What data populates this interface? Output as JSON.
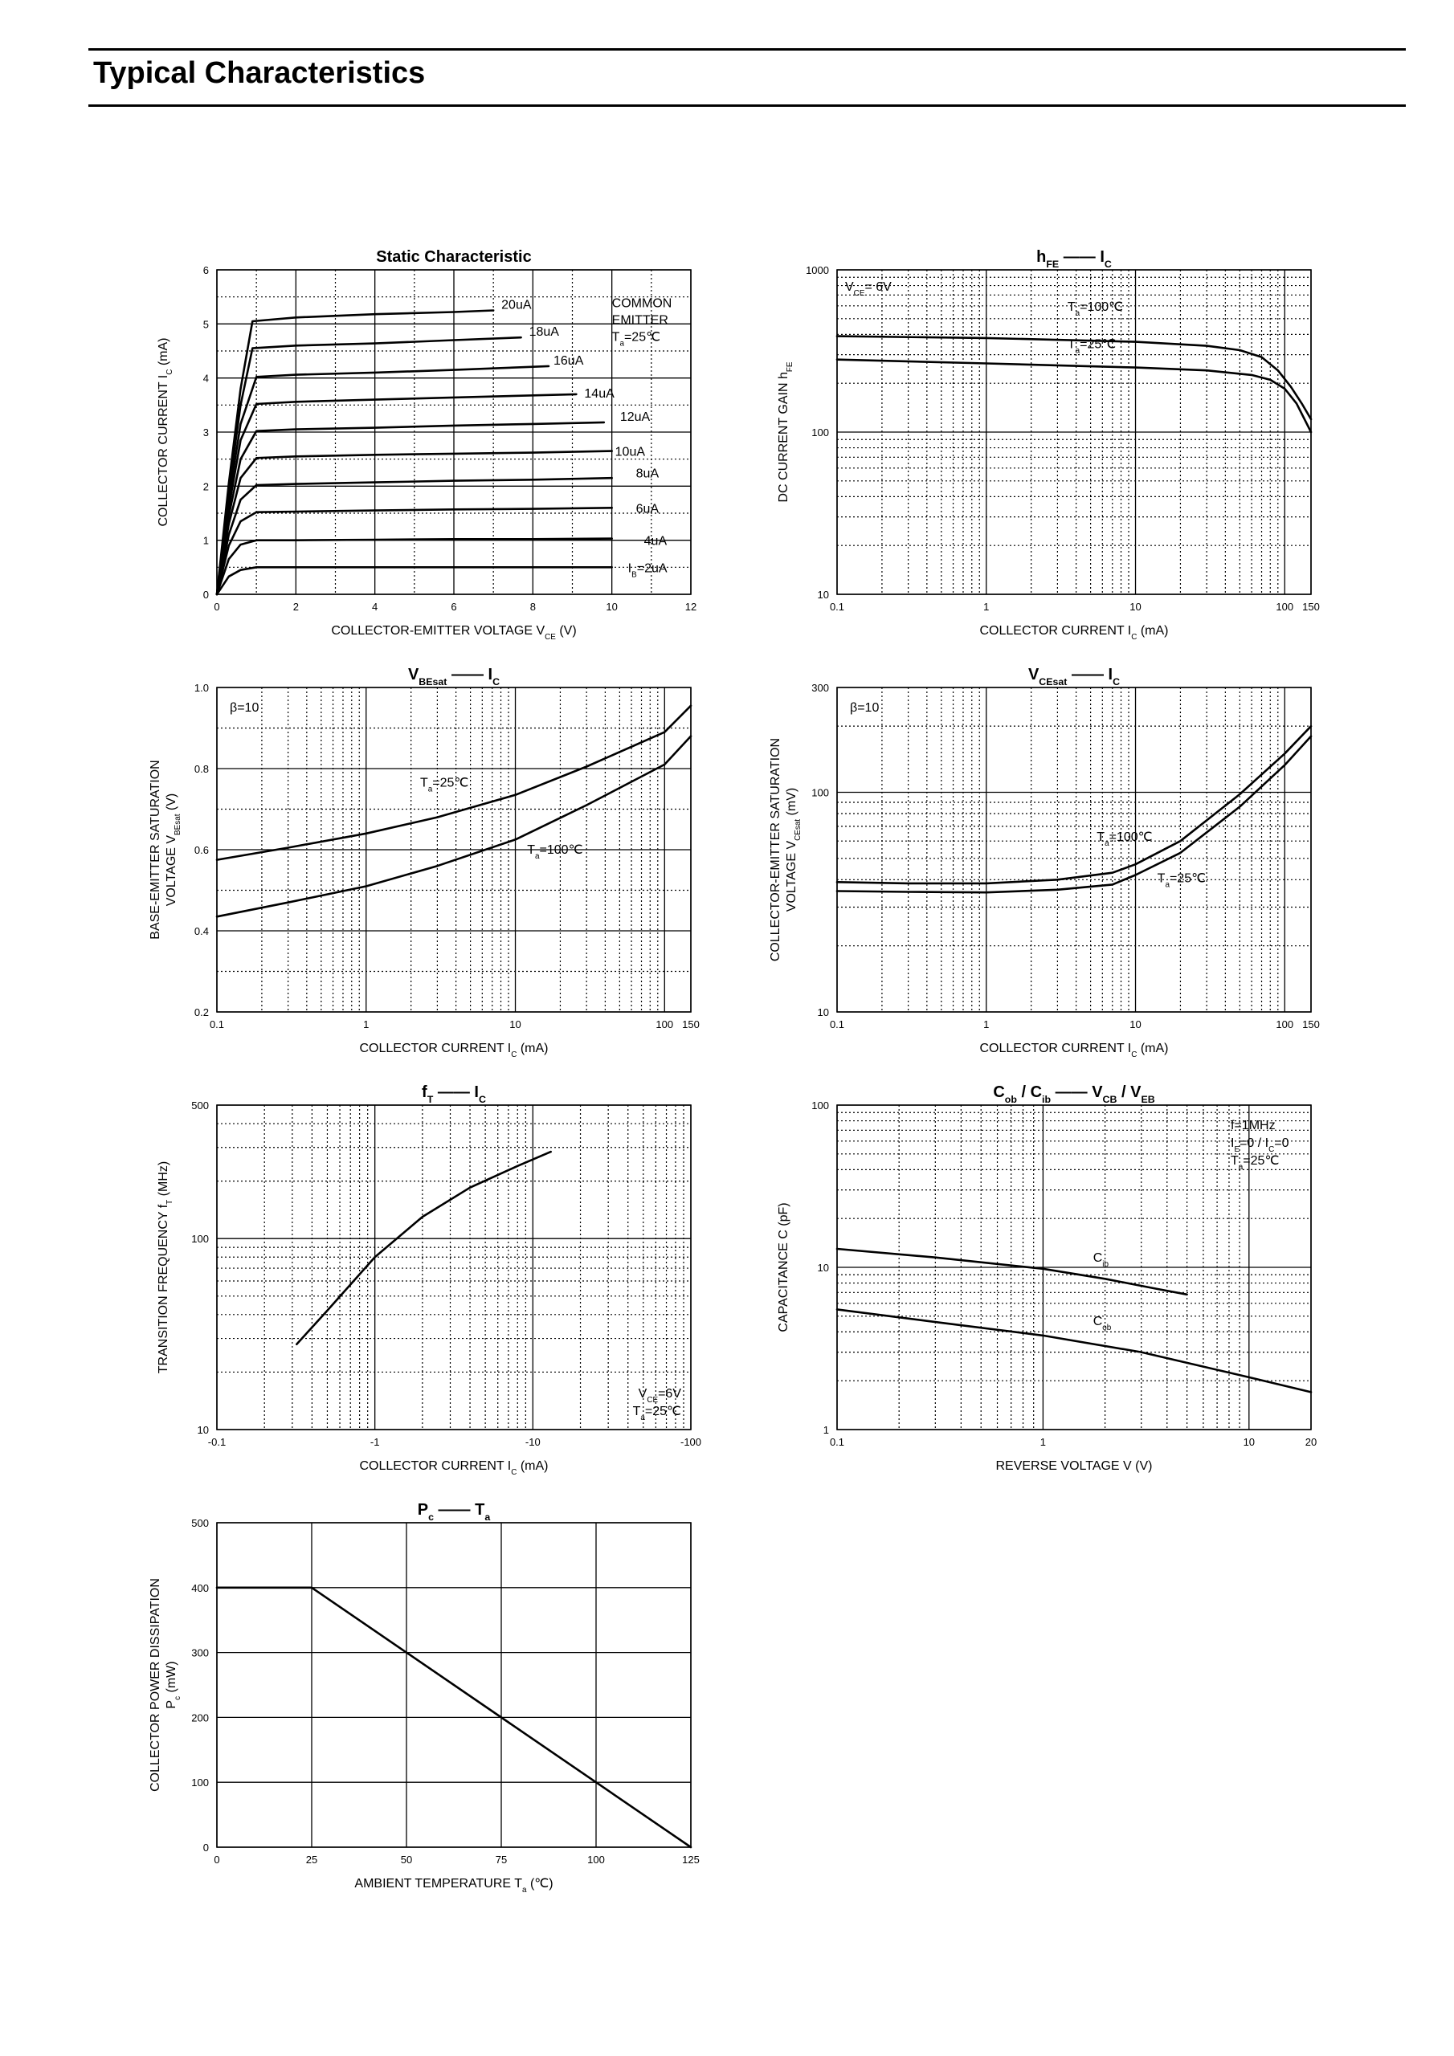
{
  "page": {
    "title": "Typical Characteristics"
  },
  "chart_data": [
    {
      "id": "static",
      "type": "line",
      "title": "Static Characteristic",
      "xlabel": "COLLECTOR-EMITTER VOLTAGE",
      "xsym": "V",
      "xsub": "CE",
      "xunit": "(V)",
      "ylabel": "COLLECTOR CURRENT",
      "ysym": "I",
      "ysub": "C",
      "yunit": "(mA)",
      "xscale": "linear",
      "yscale": "linear",
      "xlim": [
        0,
        12
      ],
      "ylim": [
        0,
        6
      ],
      "xticks": [
        0,
        2,
        4,
        6,
        8,
        10,
        12
      ],
      "xtick_labels": [
        "0",
        "2",
        "4",
        "6",
        "8",
        "10",
        "12"
      ],
      "yticks": [
        0,
        1,
        2,
        3,
        4,
        5,
        6
      ],
      "ytick_labels": [
        "0",
        "1",
        "2",
        "3",
        "4",
        "5",
        "6"
      ],
      "annotations": [
        {
          "text": "COMMON"
        },
        {
          "text": "EMITTER"
        },
        {
          "text": "T",
          "sub": "a",
          "rest": "=25℃"
        }
      ],
      "series": [
        {
          "name": "I_B=2uA",
          "label": "I",
          "label_sub": "B",
          "label_rest": "=2uA",
          "x": [
            0,
            0.3,
            0.6,
            1,
            2,
            4,
            6,
            8,
            10
          ],
          "y": [
            0,
            0.33,
            0.45,
            0.5,
            0.5,
            0.5,
            0.5,
            0.5,
            0.5
          ]
        },
        {
          "name": "4uA",
          "label": "4uA",
          "x": [
            0,
            0.3,
            0.6,
            1,
            2,
            4,
            6,
            8,
            10
          ],
          "y": [
            0,
            0.65,
            0.92,
            1.0,
            1.0,
            1.01,
            1.02,
            1.02,
            1.03
          ]
        },
        {
          "name": "6uA",
          "label": "6uA",
          "x": [
            0,
            0.3,
            0.6,
            1,
            2,
            4,
            6,
            8,
            10
          ],
          "y": [
            0,
            0.9,
            1.35,
            1.52,
            1.53,
            1.55,
            1.57,
            1.58,
            1.6
          ]
        },
        {
          "name": "8uA",
          "label": "8uA",
          "x": [
            0,
            0.3,
            0.6,
            1,
            2,
            4,
            6,
            8,
            10
          ],
          "y": [
            0,
            1.1,
            1.75,
            2.02,
            2.04,
            2.07,
            2.1,
            2.12,
            2.15
          ]
        },
        {
          "name": "10uA",
          "label": "10uA",
          "x": [
            0,
            0.3,
            0.6,
            1,
            2,
            4,
            6,
            8,
            10
          ],
          "y": [
            0,
            1.3,
            2.15,
            2.52,
            2.55,
            2.58,
            2.6,
            2.62,
            2.65
          ]
        },
        {
          "name": "12uA",
          "label": "12uA",
          "x": [
            0,
            0.3,
            0.6,
            1,
            2,
            4,
            6,
            8,
            9.8
          ],
          "y": [
            0,
            1.45,
            2.5,
            3.02,
            3.05,
            3.08,
            3.12,
            3.15,
            3.18
          ]
        },
        {
          "name": "14uA",
          "label": "14uA",
          "x": [
            0,
            0.3,
            0.6,
            1,
            2,
            4,
            6,
            9.1
          ],
          "y": [
            0,
            1.6,
            2.85,
            3.52,
            3.56,
            3.6,
            3.64,
            3.7
          ]
        },
        {
          "name": "16uA",
          "label": "16uA",
          "x": [
            0,
            0.3,
            0.6,
            1,
            2,
            4,
            6,
            8.4
          ],
          "y": [
            0,
            1.75,
            3.15,
            4.02,
            4.06,
            4.1,
            4.15,
            4.22
          ]
        },
        {
          "name": "18uA",
          "label": "18uA",
          "x": [
            0,
            0.3,
            0.6,
            0.9,
            2,
            4,
            6,
            7.7
          ],
          "y": [
            0,
            1.9,
            3.5,
            4.55,
            4.6,
            4.64,
            4.7,
            4.75
          ]
        },
        {
          "name": "20uA",
          "label": "20uA",
          "x": [
            0,
            0.3,
            0.6,
            0.9,
            2,
            4,
            6,
            7.0
          ],
          "y": [
            0,
            2.05,
            3.8,
            5.05,
            5.12,
            5.18,
            5.22,
            5.25
          ]
        }
      ]
    },
    {
      "id": "hfe",
      "type": "line",
      "title_parts": [
        {
          "t": "h",
          "s": "FE"
        },
        {
          "t": "——"
        },
        {
          "t": "I",
          "s": "C"
        }
      ],
      "xlabel": "COLLECTOR CURRENT",
      "xsym": "I",
      "xsub": "C",
      "xunit": "(mA)",
      "ylabel": "DC CURRENT GAIN",
      "ysym": "h",
      "ysub": "FE",
      "yunit": "",
      "xscale": "log",
      "yscale": "log",
      "xlim": [
        0.1,
        150
      ],
      "ylim": [
        10,
        1000
      ],
      "xticks": [
        0.1,
        1,
        10,
        100,
        150
      ],
      "xtick_labels": [
        "0.1",
        "1",
        "10",
        "100",
        "150"
      ],
      "yticks": [
        10,
        100,
        1000
      ],
      "ytick_labels": [
        "10",
        "100",
        "1000"
      ],
      "annotations": [
        {
          "text": "V",
          "sub": "CE",
          "rest": "= 6V"
        }
      ],
      "series": [
        {
          "name": "Ta=100℃",
          "label": "T",
          "label_sub": "a",
          "label_rest": "=100℃",
          "x": [
            0.1,
            1,
            10,
            30,
            50,
            70,
            90,
            110,
            130,
            150
          ],
          "y": [
            390,
            380,
            360,
            340,
            320,
            290,
            240,
            190,
            150,
            120
          ]
        },
        {
          "name": "Ta=25℃",
          "label": "T",
          "label_sub": "a",
          "label_rest": "=25℃",
          "x": [
            0.1,
            1,
            10,
            30,
            60,
            80,
            100,
            120,
            150
          ],
          "y": [
            280,
            265,
            250,
            240,
            225,
            210,
            185,
            150,
            100
          ]
        }
      ]
    },
    {
      "id": "vbesat",
      "type": "line",
      "title_parts": [
        {
          "t": "V",
          "s": "BEsat"
        },
        {
          "t": "——"
        },
        {
          "t": "I",
          "s": "C"
        }
      ],
      "xlabel": "COLLECTOR CURRENT",
      "xsym": "I",
      "xsub": "C",
      "xunit": "(mA)",
      "ylabel": "BASE-EMITTER SATURATION",
      "ylabel2": "VOLTAGE",
      "ysym": "V",
      "ysub": "BEsat",
      "yunit": "(V)",
      "xscale": "log",
      "yscale": "linear",
      "xlim": [
        0.1,
        150
      ],
      "ylim": [
        0.2,
        1.0
      ],
      "xticks": [
        0.1,
        1,
        10,
        100,
        150
      ],
      "xtick_labels": [
        "0.1",
        "1",
        "10",
        "100",
        "150"
      ],
      "yticks": [
        0.2,
        0.4,
        0.6,
        0.8,
        1.0
      ],
      "ytick_labels": [
        "0.2",
        "0.4",
        "0.6",
        "0.8",
        "1.0"
      ],
      "annotations": [
        {
          "text": "β=10"
        }
      ],
      "series": [
        {
          "name": "Ta=25℃",
          "label": "T",
          "label_sub": "a",
          "label_rest": "=25℃",
          "x": [
            0.1,
            0.3,
            1,
            3,
            10,
            30,
            100,
            150
          ],
          "y": [
            0.575,
            0.605,
            0.64,
            0.68,
            0.735,
            0.805,
            0.89,
            0.955
          ]
        },
        {
          "name": "Ta=100℃",
          "label": "T",
          "label_sub": "a",
          "label_rest": "=100℃",
          "x": [
            0.1,
            0.3,
            1,
            3,
            10,
            30,
            100,
            150
          ],
          "y": [
            0.435,
            0.47,
            0.51,
            0.56,
            0.625,
            0.71,
            0.81,
            0.88
          ]
        }
      ]
    },
    {
      "id": "vcesat",
      "type": "line",
      "title_parts": [
        {
          "t": "V",
          "s": "CEsat"
        },
        {
          "t": "——"
        },
        {
          "t": "I",
          "s": "C"
        }
      ],
      "xlabel": "COLLECTOR CURRENT",
      "xsym": "I",
      "xsub": "C",
      "xunit": "(mA)",
      "ylabel": "COLLECTOR-EMITTER SATURATION",
      "ylabel2": "VOLTAGE",
      "ysym": "V",
      "ysub": "CEsat",
      "yunit": "(mV)",
      "xscale": "log",
      "yscale": "log",
      "xlim": [
        0.1,
        150
      ],
      "ylim": [
        10,
        300
      ],
      "xticks": [
        0.1,
        1,
        10,
        100,
        150
      ],
      "xtick_labels": [
        "0.1",
        "1",
        "10",
        "100",
        "150"
      ],
      "yticks": [
        10,
        100,
        300
      ],
      "ytick_labels": [
        "10",
        "100",
        "300"
      ],
      "annotations": [
        {
          "text": "β=10"
        }
      ],
      "series": [
        {
          "name": "Ta=100℃",
          "label": "T",
          "label_sub": "a",
          "label_rest": "=100℃",
          "x": [
            0.1,
            0.3,
            1,
            3,
            7,
            10,
            20,
            50,
            100,
            150
          ],
          "y": [
            39,
            38.5,
            38.5,
            40,
            43,
            47,
            60,
            98,
            150,
            200
          ]
        },
        {
          "name": "Ta=25℃",
          "label": "T",
          "label_sub": "a",
          "label_rest": "=25℃",
          "x": [
            0.1,
            0.3,
            1,
            3,
            7,
            10,
            20,
            50,
            100,
            150
          ],
          "y": [
            35.5,
            35.2,
            35,
            36,
            38,
            42,
            53,
            86,
            133,
            180
          ]
        }
      ]
    },
    {
      "id": "ft",
      "type": "line",
      "title_parts": [
        {
          "t": "f",
          "s": "T"
        },
        {
          "t": "——"
        },
        {
          "t": "I",
          "s": "C"
        }
      ],
      "xlabel": "COLLECTOR CURRENT",
      "xsym": "I",
      "xsub": "C",
      "xunit": "(mA)",
      "ylabel": "TRANSITION FREQUENCY",
      "ysym": "f",
      "ysub": "T",
      "yunit": "(MHz)",
      "xscale": "log",
      "yscale": "log",
      "xlim": [
        0.1,
        100
      ],
      "ylim": [
        10,
        500
      ],
      "xticks": [
        0.1,
        1,
        10,
        100
      ],
      "xtick_labels": [
        "-0.1",
        "-1",
        "-10",
        "-100"
      ],
      "yticks": [
        10,
        100,
        500
      ],
      "ytick_labels": [
        "10",
        "100",
        "500"
      ],
      "annotations": [
        {
          "text": "V",
          "sub": "CE",
          "rest": "=6V"
        },
        {
          "text": "T",
          "sub": "a",
          "rest": "=25℃"
        }
      ],
      "series": [
        {
          "name": "fT",
          "x": [
            0.32,
            0.5,
            1,
            2,
            4,
            8,
            13
          ],
          "y": [
            28,
            42,
            80,
            130,
            185,
            240,
            285
          ]
        }
      ]
    },
    {
      "id": "cap",
      "type": "line",
      "title_parts": [
        {
          "t": "C",
          "s": "ob"
        },
        {
          "t": "/"
        },
        {
          "t": "C",
          "s": "ib"
        },
        {
          "t": "——"
        },
        {
          "t": "V",
          "s": "CB"
        },
        {
          "t": "/"
        },
        {
          "t": "V",
          "s": "EB"
        }
      ],
      "xlabel": "REVERSE  VOLTAGE",
      "xsym": "V",
      "xsub": "",
      "xunit": "(V)",
      "ylabel": "CAPACITANCE",
      "ysym": "C",
      "ysub": "",
      "yunit": "(pF)",
      "xscale": "log",
      "yscale": "log",
      "xlim": [
        0.1,
        20
      ],
      "ylim": [
        1,
        100
      ],
      "xticks": [
        0.1,
        1,
        10,
        20
      ],
      "xtick_labels": [
        "0.1",
        "1",
        "10",
        "20"
      ],
      "yticks": [
        1,
        10,
        100
      ],
      "ytick_labels": [
        "1",
        "10",
        "100"
      ],
      "annotations": [
        {
          "text": "f=1MHz"
        },
        {
          "text": "I",
          "sub": "E",
          "rest": "=0 / I",
          "sub2": "C",
          "rest2": "=0"
        },
        {
          "text": "T",
          "sub": "a",
          "rest": "=25℃"
        }
      ],
      "series": [
        {
          "name": "Cib",
          "label": "C",
          "label_sub": "ib",
          "x": [
            0.1,
            0.3,
            1,
            2,
            3.5,
            5
          ],
          "y": [
            13,
            11.5,
            9.8,
            8.5,
            7.4,
            6.8
          ]
        },
        {
          "name": "Cob",
          "label": "C",
          "label_sub": "ob",
          "x": [
            0.1,
            0.3,
            1,
            3,
            10,
            20
          ],
          "y": [
            5.5,
            4.6,
            3.8,
            3.0,
            2.1,
            1.7
          ]
        }
      ]
    },
    {
      "id": "pc",
      "type": "line",
      "title_parts": [
        {
          "t": "P",
          "s": "c"
        },
        {
          "t": "——"
        },
        {
          "t": "T",
          "s": "a"
        }
      ],
      "xlabel": "AMBIENT TEMPERATURE",
      "xsym": "T",
      "xsub": "a",
      "xunit": "(℃)",
      "ylabel": "COLLECTOR POWER DISSIPATION",
      "ylabel2": "",
      "ysym": "P",
      "ysub": "c",
      "yunit": "(mW)",
      "xscale": "linear",
      "yscale": "linear",
      "xlim": [
        0,
        125
      ],
      "ylim": [
        0,
        500
      ],
      "xticks": [
        0,
        25,
        50,
        75,
        100,
        125
      ],
      "xtick_labels": [
        "0",
        "25",
        "50",
        "75",
        "100",
        "125"
      ],
      "yticks": [
        0,
        100,
        200,
        300,
        400,
        500
      ],
      "ytick_labels": [
        "0",
        "100",
        "200",
        "300",
        "400",
        "500"
      ],
      "annotations": [],
      "series": [
        {
          "name": "Pc",
          "x": [
            0,
            25,
            125
          ],
          "y": [
            400,
            400,
            0
          ]
        }
      ]
    }
  ]
}
